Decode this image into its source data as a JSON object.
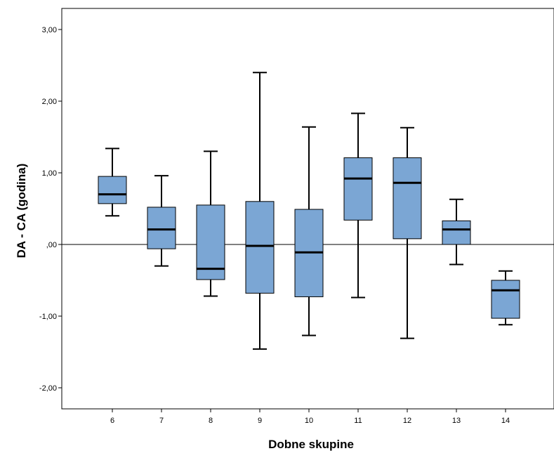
{
  "chart_data": {
    "type": "boxplot",
    "xlabel": "Dobne skupine",
    "ylabel": "DA - CA (godina)",
    "ylim": [
      -2.3,
      3.3
    ],
    "y_ticks": [
      {
        "value": 3,
        "label": "3,00"
      },
      {
        "value": 2,
        "label": "2,00"
      },
      {
        "value": 1,
        "label": "1,00"
      },
      {
        "value": 0,
        "label": ",00"
      },
      {
        "value": -1,
        "label": "-1,00"
      },
      {
        "value": -2,
        "label": "-2,00"
      }
    ],
    "reference_line": 0,
    "box_color": "#7ba6d4",
    "grid": false,
    "categories": [
      "6",
      "7",
      "8",
      "9",
      "10",
      "11",
      "12",
      "13",
      "14"
    ],
    "boxes": [
      {
        "category": "6",
        "min": 0.4,
        "q1": 0.57,
        "median": 0.7,
        "q3": 0.95,
        "max": 1.34
      },
      {
        "category": "7",
        "min": -0.3,
        "q1": -0.06,
        "median": 0.21,
        "q3": 0.52,
        "max": 0.96
      },
      {
        "category": "8",
        "min": -0.72,
        "q1": -0.49,
        "median": -0.34,
        "q3": 0.55,
        "max": 1.3
      },
      {
        "category": "9",
        "min": -1.46,
        "q1": -0.68,
        "median": -0.02,
        "q3": 0.6,
        "max": 2.4
      },
      {
        "category": "10",
        "min": -1.27,
        "q1": -0.73,
        "median": -0.11,
        "q3": 0.49,
        "max": 1.64
      },
      {
        "category": "11",
        "min": -0.74,
        "q1": 0.34,
        "median": 0.92,
        "q3": 1.21,
        "max": 1.83
      },
      {
        "category": "12",
        "min": -1.31,
        "q1": 0.08,
        "median": 0.86,
        "q3": 1.21,
        "max": 1.63
      },
      {
        "category": "13",
        "min": -0.28,
        "q1": 0.0,
        "median": 0.21,
        "q3": 0.33,
        "max": 0.63
      },
      {
        "category": "14",
        "min": -1.12,
        "q1": -1.03,
        "median": -0.64,
        "q3": -0.5,
        "max": -0.37
      }
    ]
  }
}
